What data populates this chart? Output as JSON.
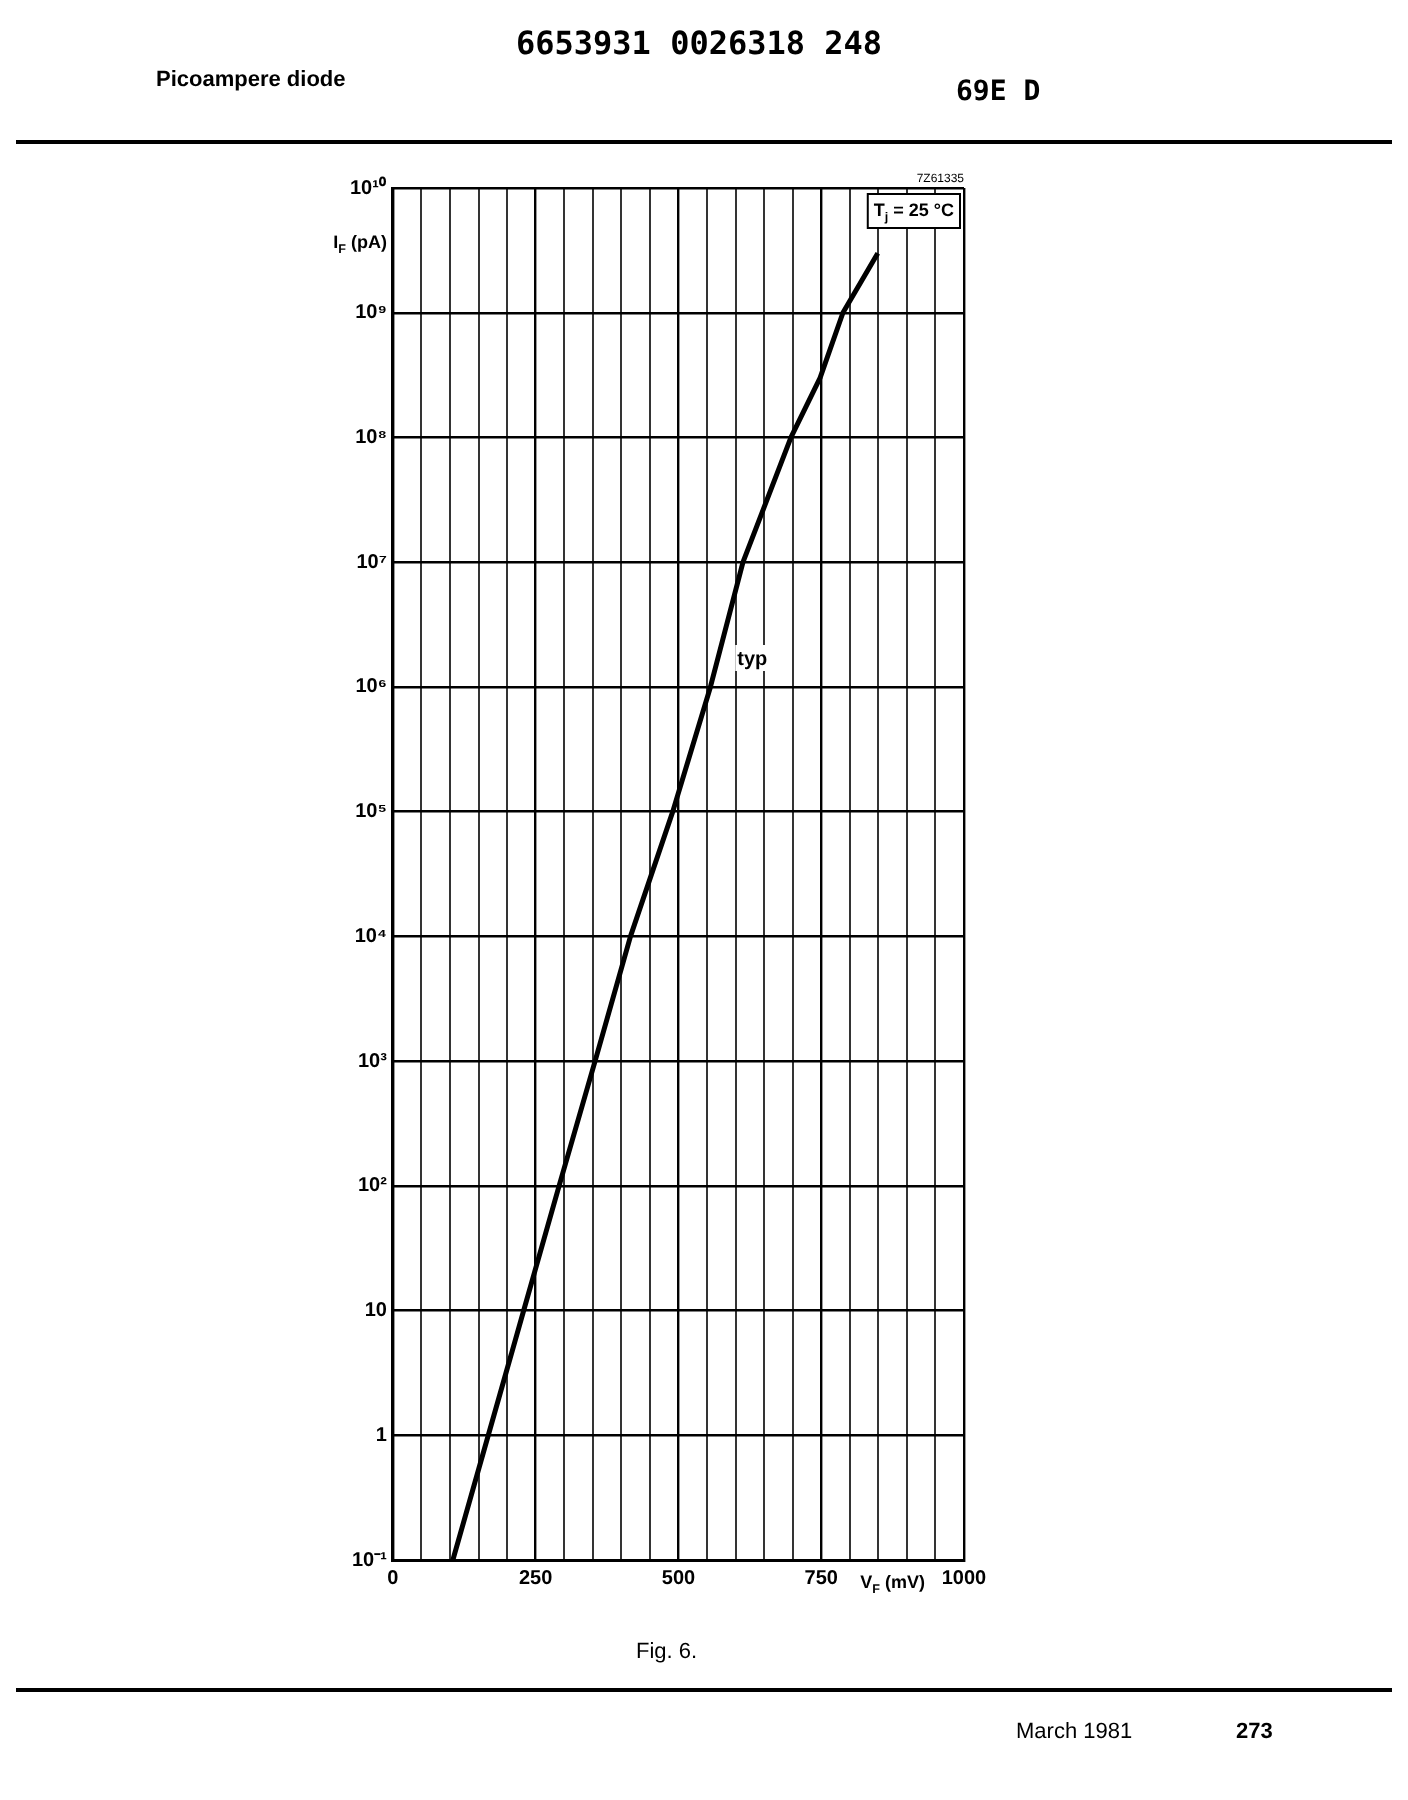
{
  "chart_data": {
    "type": "line",
    "title": "Picoampere diode",
    "subtitle": "6653931 0026318 248",
    "xlabel": "V$_{F}$ (mV)",
    "ylabel": "I$_{F}$ (pA)",
    "x": [
      105,
      167,
      229,
      291,
      354,
      416,
      490,
      556,
      613,
      697,
      748,
      788,
      849
    ],
    "series": [
      {
        "color": "#000000",
        "values": [
          0.1,
          1,
          10,
          100,
          1000,
          10000,
          100000,
          1000000,
          10000000,
          100000000,
          300000000,
          1000000000,
          3000000000
        ]
      }
    ],
    "xlim": [
      0,
      1000
    ],
    "ylim": [
      0.1,
      10000000000
    ],
    "log": "y",
    "xticks": [
      0,
      {
        "value": 50,
        "label": null
      },
      {
        "value": 100,
        "label": null
      },
      {
        "value": 150,
        "label": null
      },
      {
        "value": 200,
        "label": null
      },
      250,
      {
        "value": 300,
        "label": null
      },
      {
        "value": 350,
        "label": null
      },
      {
        "value": 400,
        "label": null
      },
      {
        "value": 450,
        "label": null
      },
      500,
      {
        "value": 550,
        "label": null
      },
      {
        "value": 600,
        "label": null
      },
      {
        "value": 650,
        "label": null
      },
      {
        "value": 700,
        "label": null
      },
      750,
      {
        "value": 800,
        "label": null
      },
      {
        "value": 850,
        "label": null
      },
      {
        "value": 900,
        "label": null
      },
      {
        "value": 950,
        "label": null
      },
      1000
    ],
    "yticks": [
      {
        "value": 0.1,
        "label": "10⁻¹"
      },
      1,
      10,
      {
        "value": 100,
        "label": "10²"
      },
      {
        "value": 1000,
        "label": "10³"
      },
      {
        "value": 10000,
        "label": "10⁴"
      },
      {
        "value": 100000,
        "label": "10⁵"
      },
      {
        "value": 1000000,
        "label": "10⁶"
      },
      {
        "value": 10000000,
        "label": "10⁷"
      },
      {
        "value": 100000000,
        "label": "10⁸"
      },
      {
        "value": 1000000000,
        "label": "10⁹"
      },
      {
        "value": 10000000000,
        "label": "10¹⁰"
      }
    ],
    "grid": true,
    "legend": false,
    "marker": "none",
    "line_style": "solid",
    "annotations": [
      {
        "text": "typ",
        "x": 575,
        "y": 1500000
      },
      "T$_{j}$ = 25 °C",
      "7Z61335",
      "69E D",
      "Fig. 6.",
      "March 1981",
      "273"
    ]
  }
}
